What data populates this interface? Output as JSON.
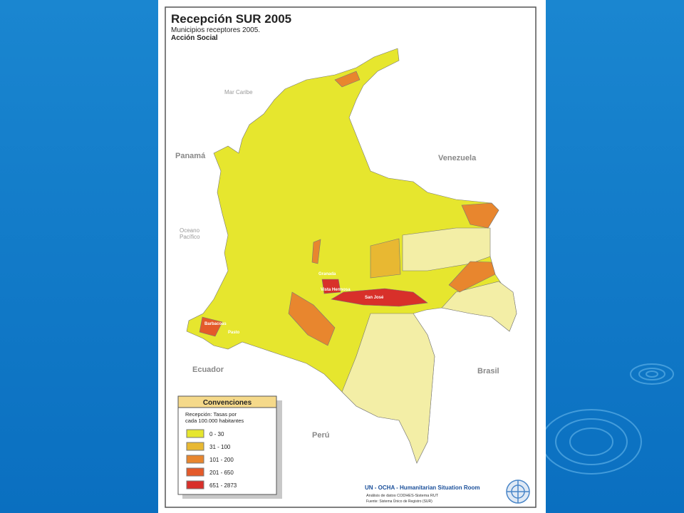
{
  "map": {
    "title": "Recepción SUR 2005",
    "subtitle_lines": [
      "Municipios receptores 2005.",
      "Acción Social"
    ],
    "places": {
      "mar_caribe": "Mar Caribe",
      "panama": "Panamá",
      "venezuela": "Venezuela",
      "oceano": "Oceano",
      "pacifico": "Pacífico",
      "ecuador": "Ecuador",
      "brasil": "Brasil",
      "peru": "Perú"
    },
    "cities": [
      "Granada",
      "Vista Hermosa",
      "San José",
      "Pasto",
      "Barbacoas"
    ]
  },
  "legend": {
    "title": "Convenciones",
    "caption_lines": [
      "Recepción: Tasas por",
      "cada 100.000 habitantes"
    ],
    "items": [
      {
        "label": "0 - 30",
        "color": "#e6e62e"
      },
      {
        "label": "31 - 100",
        "color": "#e8b832"
      },
      {
        "label": "101 - 200",
        "color": "#e8862e"
      },
      {
        "label": "201 - 650",
        "color": "#e45a2a"
      },
      {
        "label": "651 - 2873",
        "color": "#d8302a"
      }
    ]
  },
  "footer": {
    "org": "UN - OCHA - Humanitarian Situation Room",
    "lines": [
      "Análisis de datos CODHES-Sistema RUT",
      "Fuente: Sistema Único de Registro (SUR)"
    ]
  }
}
